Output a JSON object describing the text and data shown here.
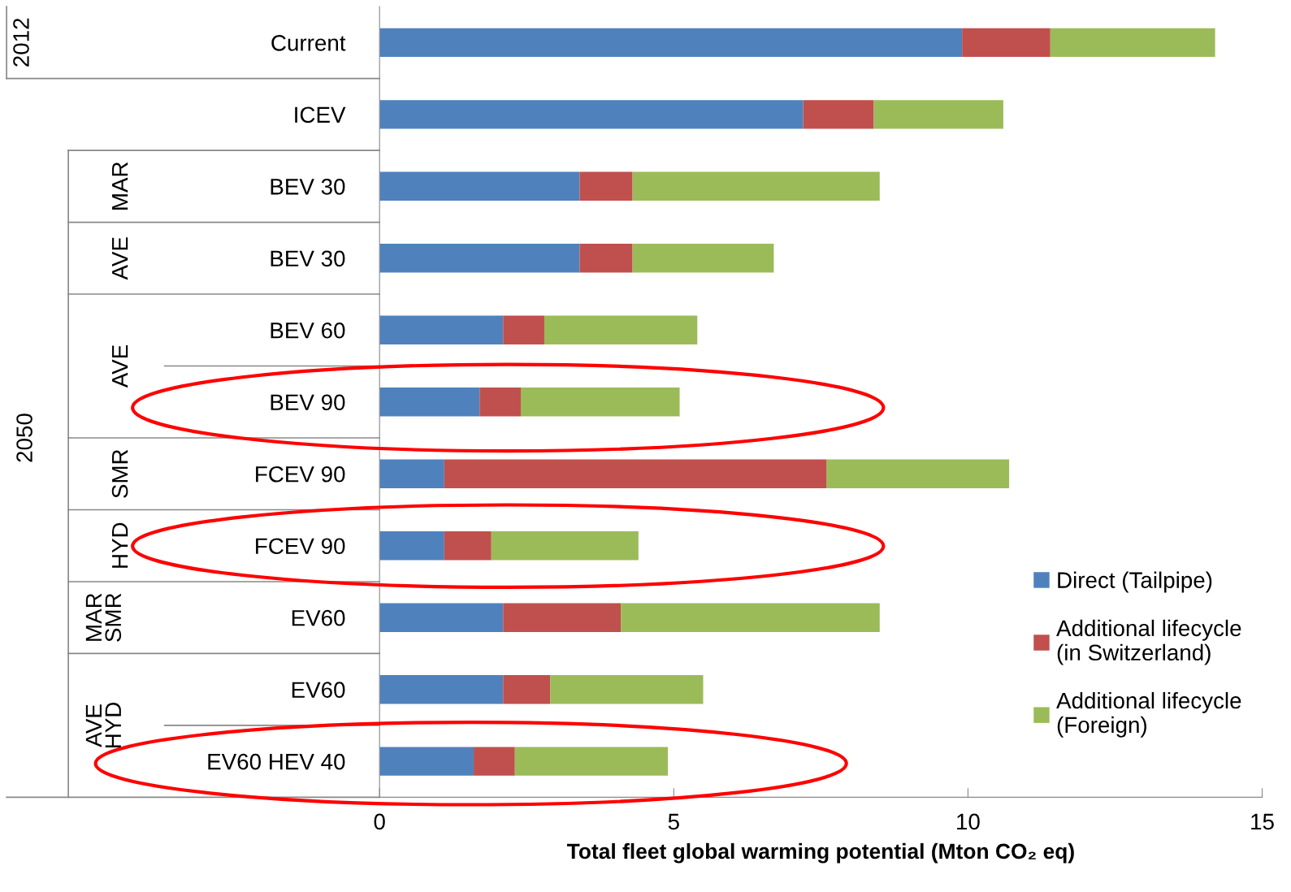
{
  "chart_data": {
    "type": "bar",
    "orientation": "horizontal",
    "stacked": true,
    "categories": [
      "Current",
      "ICEV",
      "BEV 30",
      "BEV 30",
      "BEV 60",
      "BEV 90",
      "FCEV 90",
      "FCEV 90",
      "EV60",
      "EV60",
      "EV60 HEV 40"
    ],
    "series": [
      {
        "name": "Direct (Tailpipe)",
        "color": "#4f81bd",
        "values": [
          9.9,
          7.2,
          3.4,
          3.4,
          2.1,
          1.7,
          1.1,
          1.1,
          2.1,
          2.1,
          1.6
        ]
      },
      {
        "name": "Additional lifecycle\n(in Switzerland)",
        "color": "#c0504d",
        "values": [
          1.5,
          1.2,
          0.9,
          0.9,
          0.7,
          0.7,
          6.5,
          0.8,
          2.0,
          0.8,
          0.7
        ]
      },
      {
        "name": "Additional lifecycle\n(Foreign)",
        "color": "#9bbb59",
        "values": [
          2.8,
          2.2,
          4.2,
          2.4,
          2.6,
          2.7,
          3.1,
          2.5,
          4.4,
          2.6,
          2.6
        ]
      }
    ],
    "xlabel": "Total fleet global warming potential (Mton CO₂ eq)",
    "xlim": [
      0,
      15
    ],
    "xticks": [
      0,
      5,
      10,
      15
    ],
    "legend": "bottom right",
    "grid": false,
    "annotations": [
      "2012",
      "2050",
      "MAR",
      "AVE",
      "AVE",
      "SMR",
      "HYD",
      "MAR\nSMR",
      "AVE\nHYD"
    ]
  }
}
